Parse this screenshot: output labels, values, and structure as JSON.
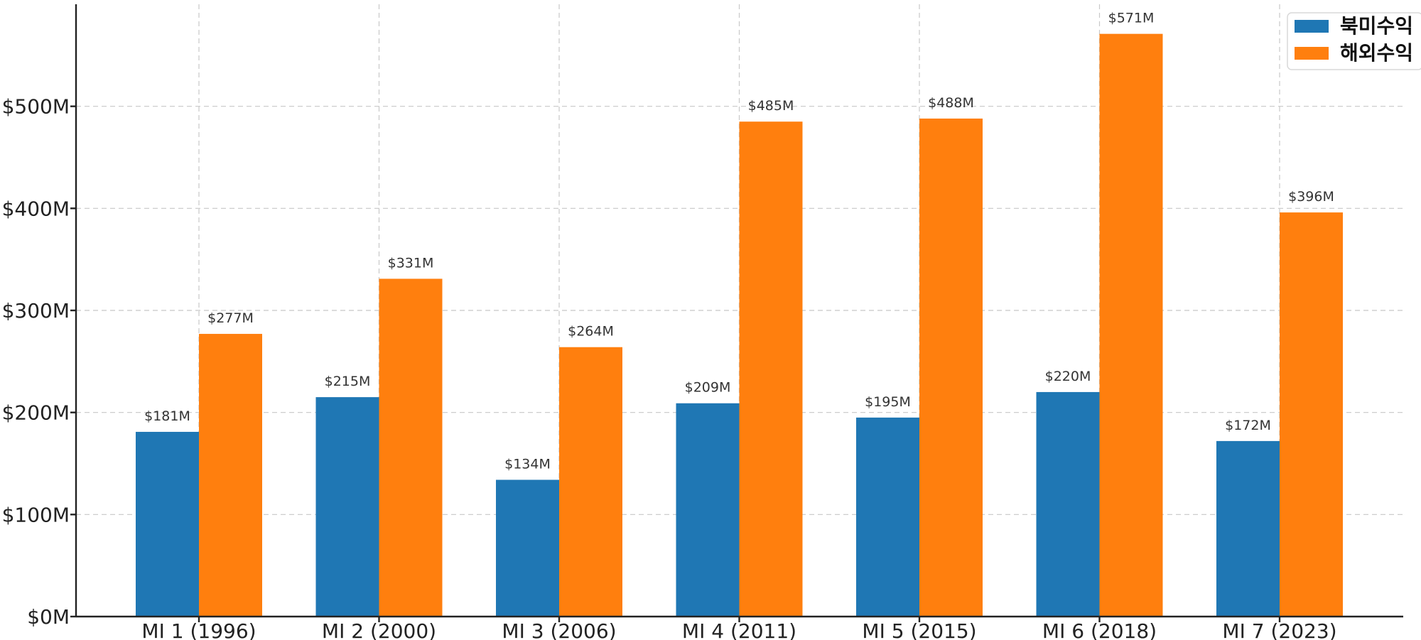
{
  "chart_data": {
    "type": "bar",
    "title": "",
    "xlabel": "",
    "ylabel": "",
    "categories": [
      "MI 1 (1996)",
      "MI 2 (2000)",
      "MI 3 (2006)",
      "MI 4 (2011)",
      "MI 5 (2015)",
      "MI 6 (2018)",
      "MI 7 (2023)"
    ],
    "series": [
      {
        "name": "북미수익",
        "color": "#1f77b4",
        "values": [
          181,
          215,
          134,
          209,
          195,
          220,
          172
        ],
        "labels": [
          "$181M",
          "$215M",
          "$134M",
          "$209M",
          "$195M",
          "$220M",
          "$172M"
        ]
      },
      {
        "name": "해외수익",
        "color": "#ff7f0e",
        "values": [
          277,
          331,
          264,
          485,
          488,
          571,
          396
        ],
        "labels": [
          "$277M",
          "$331M",
          "$264M",
          "$485M",
          "$488M",
          "$571M",
          "$396M"
        ]
      }
    ],
    "ylim": [
      0,
      600
    ],
    "yticks": [
      0,
      100,
      200,
      300,
      400,
      500
    ],
    "ytick_labels": [
      "$0M",
      "$100M",
      "$200M",
      "$300M",
      "$400M",
      "$500M"
    ],
    "grid": true,
    "legend_position": "top-right"
  }
}
